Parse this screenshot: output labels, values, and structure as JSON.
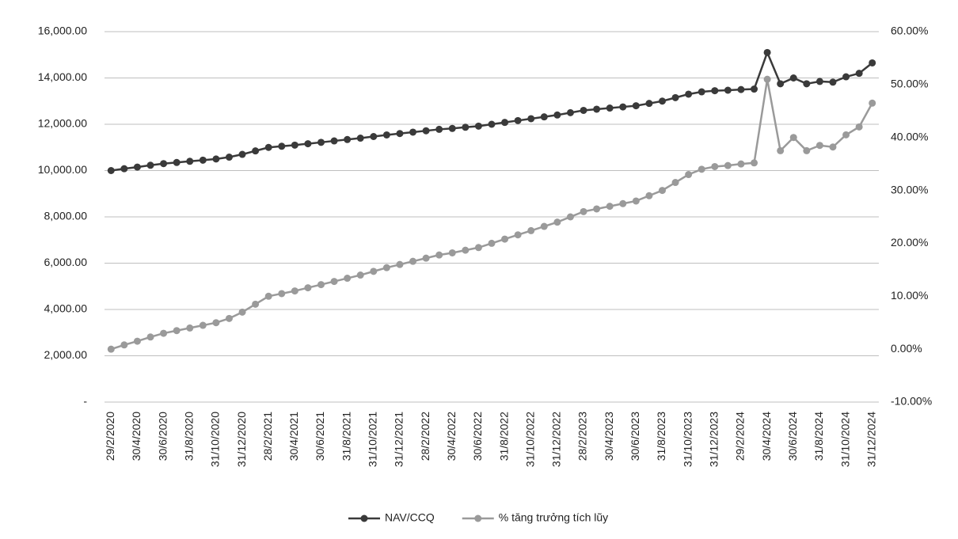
{
  "chart_data": {
    "type": "line",
    "categories": [
      "29/2/2020",
      null,
      "30/4/2020",
      null,
      "30/6/2020",
      null,
      "31/8/2020",
      null,
      "31/10/2020",
      null,
      "31/12/2020",
      null,
      "28/2/2021",
      null,
      "30/4/2021",
      null,
      "30/6/2021",
      null,
      "31/8/2021",
      null,
      "31/10/2021",
      null,
      "31/12/2021",
      null,
      "28/2/2022",
      null,
      "30/4/2022",
      null,
      "30/6/2022",
      null,
      "31/8/2022",
      null,
      "31/10/2022",
      null,
      "31/12/2022",
      null,
      "28/2/2023",
      null,
      "30/4/2023",
      null,
      "30/6/2023",
      null,
      "31/8/2023",
      null,
      "31/10/2023",
      null,
      "31/12/2023",
      null,
      "29/2/2024",
      null,
      "30/4/2024",
      null,
      "30/6/2024",
      null,
      "31/8/2024",
      null,
      "31/10/2024",
      null,
      "31/12/2024"
    ],
    "series": [
      {
        "name": "NAV/CCQ",
        "color": "#3a3a3a",
        "values": [
          10000,
          10080,
          10150,
          10230,
          10300,
          10350,
          10400,
          10450,
          10500,
          10580,
          10700,
          10850,
          11000,
          11050,
          11100,
          11160,
          11220,
          11280,
          11340,
          11400,
          11470,
          11540,
          11600,
          11660,
          11720,
          11780,
          11820,
          11870,
          11920,
          12000,
          12080,
          12160,
          12240,
          12320,
          12400,
          12500,
          12600,
          12650,
          12700,
          12750,
          12800,
          12900,
          13000,
          13150,
          13300,
          13400,
          13450,
          13470,
          13500,
          13520,
          15100,
          13750,
          14000,
          13750,
          13850,
          13820,
          14050,
          14200,
          14650
        ]
      },
      {
        "name": "% tăng trưởng tích lũy",
        "color": "#9a9a9a",
        "axis": "y2",
        "values": [
          0,
          0.8,
          1.5,
          2.3,
          3.0,
          3.5,
          4.0,
          4.5,
          5.0,
          5.8,
          7.0,
          8.5,
          10.0,
          10.5,
          11.0,
          11.6,
          12.2,
          12.8,
          13.4,
          14.0,
          14.7,
          15.4,
          16.0,
          16.6,
          17.2,
          17.8,
          18.2,
          18.7,
          19.2,
          20.0,
          20.8,
          21.6,
          22.4,
          23.2,
          24.0,
          25.0,
          26.0,
          26.5,
          27.0,
          27.5,
          28.0,
          29.0,
          30.0,
          31.5,
          33.0,
          34.0,
          34.5,
          34.7,
          35.0,
          35.2,
          51.0,
          37.5,
          40.0,
          37.5,
          38.5,
          38.2,
          40.5,
          42.0,
          46.5
        ]
      }
    ],
    "ylim": [
      0,
      16000
    ],
    "yticks": [
      {
        "value": 0,
        "label": "-"
      },
      {
        "value": 2000,
        "label": "2,000.00"
      },
      {
        "value": 4000,
        "label": "4,000.00"
      },
      {
        "value": 6000,
        "label": "6,000.00"
      },
      {
        "value": 8000,
        "label": "8,000.00"
      },
      {
        "value": 10000,
        "label": "10,000.00"
      },
      {
        "value": 12000,
        "label": "12,000.00"
      },
      {
        "value": 14000,
        "label": "14,000.00"
      },
      {
        "value": 16000,
        "label": "16,000.00"
      }
    ],
    "y2lim": [
      -10,
      60
    ],
    "y2ticks": [
      {
        "value": -10,
        "label": "-10.00%"
      },
      {
        "value": 0,
        "label": "0.00%"
      },
      {
        "value": 10,
        "label": "10.00%"
      },
      {
        "value": 20,
        "label": "20.00%"
      },
      {
        "value": 30,
        "label": "30.00%"
      },
      {
        "value": 40,
        "label": "40.00%"
      },
      {
        "value": 50,
        "label": "50.00%"
      },
      {
        "value": 60,
        "label": "60.00%"
      }
    ],
    "grid": true,
    "legend": "bottom"
  }
}
